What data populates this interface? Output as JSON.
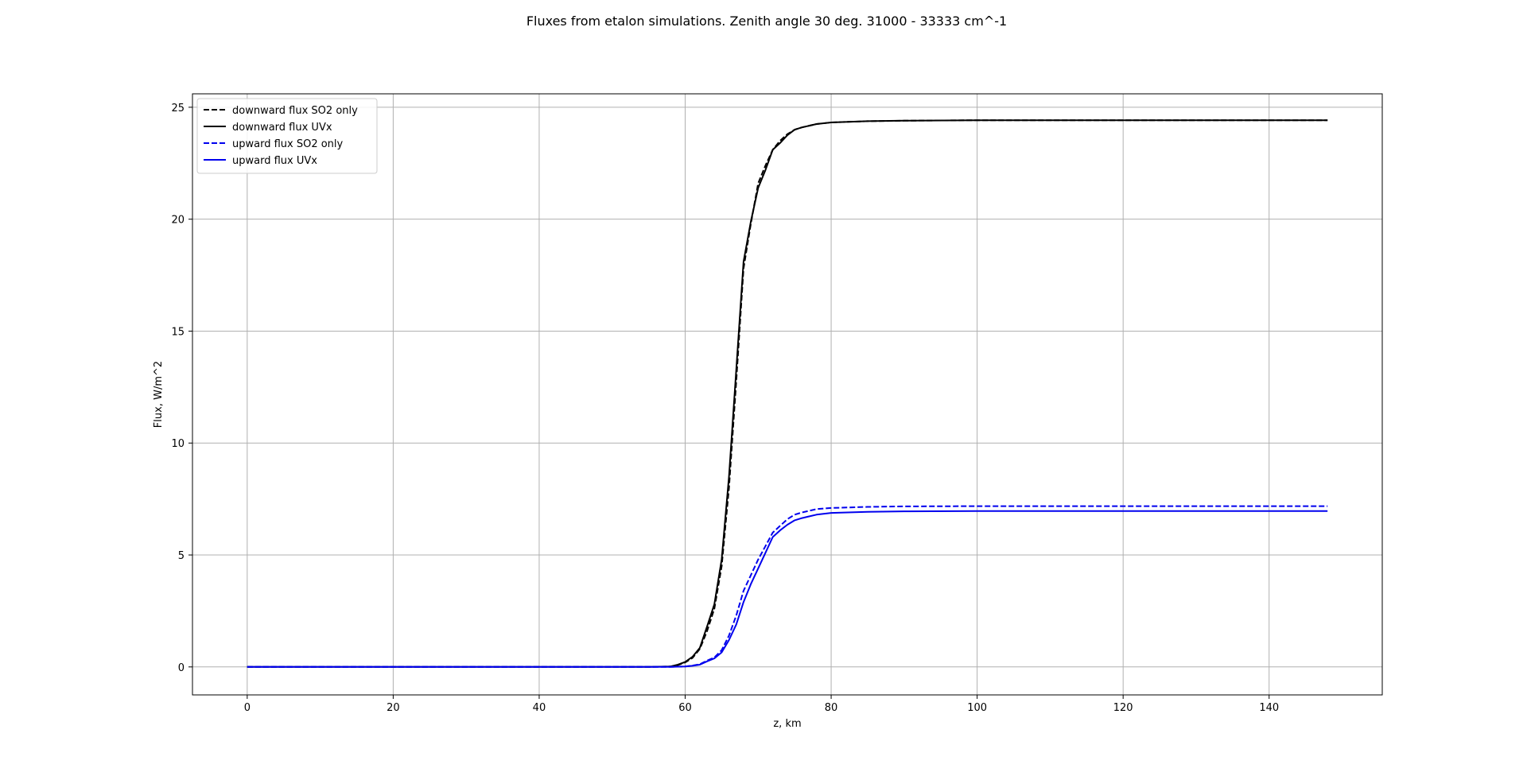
{
  "chart_data": {
    "type": "line",
    "title": "Fluxes from etalon simulations. Zenith angle 30 deg. 31000 - 33333 cm^-1",
    "xlabel": "z, km",
    "ylabel": "Flux, W/m^2",
    "xlim": [
      -7.5,
      155.5
    ],
    "ylim": [
      -1.25,
      25.6
    ],
    "xticks": [
      0,
      20,
      40,
      60,
      80,
      100,
      120,
      140
    ],
    "yticks": [
      0,
      5,
      10,
      15,
      20,
      25
    ],
    "grid": true,
    "legend_position": "top-left",
    "series": [
      {
        "name": "downward flux SO2 only",
        "color": "#000000",
        "dash": "dashed",
        "x": [
          0,
          20,
          40,
          55,
          58,
          59,
          60,
          61,
          62,
          63,
          64,
          65,
          66,
          67,
          68,
          69,
          70,
          71,
          72,
          73,
          74,
          75,
          76,
          78,
          80,
          85,
          90,
          100,
          120,
          148
        ],
        "y": [
          0,
          0,
          0,
          0,
          0.02,
          0.08,
          0.2,
          0.4,
          0.8,
          1.6,
          2.6,
          4.5,
          8.0,
          12.8,
          17.8,
          19.8,
          21.6,
          22.4,
          23.1,
          23.5,
          23.8,
          24.0,
          24.1,
          24.25,
          24.32,
          24.38,
          24.4,
          24.42,
          24.42,
          24.42
        ]
      },
      {
        "name": "downward flux UVx",
        "color": "#000000",
        "dash": "solid",
        "x": [
          0,
          20,
          40,
          55,
          58,
          59,
          60,
          61,
          62,
          63,
          64,
          65,
          66,
          67,
          68,
          69,
          70,
          71,
          72,
          73,
          74,
          75,
          76,
          78,
          80,
          85,
          90,
          100,
          120,
          148
        ],
        "y": [
          0,
          0,
          0,
          0,
          0.02,
          0.1,
          0.22,
          0.45,
          0.85,
          1.8,
          2.8,
          4.8,
          8.5,
          13.3,
          18.1,
          19.9,
          21.4,
          22.2,
          23.1,
          23.4,
          23.75,
          24.0,
          24.1,
          24.25,
          24.32,
          24.38,
          24.4,
          24.42,
          24.42,
          24.42
        ]
      },
      {
        "name": "upward flux SO2 only",
        "color": "#0000ee",
        "dash": "dashed",
        "x": [
          0,
          20,
          40,
          58,
          60,
          61,
          62,
          63,
          64,
          65,
          66,
          67,
          68,
          69,
          70,
          71,
          72,
          73,
          74,
          75,
          76,
          78,
          80,
          85,
          90,
          100,
          120,
          148
        ],
        "y": [
          0,
          0,
          0,
          0,
          0.02,
          0.06,
          0.12,
          0.28,
          0.42,
          0.75,
          1.4,
          2.3,
          3.4,
          4.1,
          4.8,
          5.4,
          6.0,
          6.3,
          6.6,
          6.8,
          6.9,
          7.05,
          7.1,
          7.15,
          7.17,
          7.18,
          7.18,
          7.18
        ]
      },
      {
        "name": "upward flux UVx",
        "color": "#0000ee",
        "dash": "solid",
        "x": [
          0,
          20,
          40,
          58,
          60,
          61,
          62,
          63,
          64,
          65,
          66,
          67,
          68,
          69,
          70,
          71,
          72,
          73,
          74,
          75,
          76,
          78,
          80,
          85,
          90,
          100,
          120,
          148
        ],
        "y": [
          0,
          0,
          0,
          0,
          0.02,
          0.05,
          0.1,
          0.25,
          0.38,
          0.65,
          1.2,
          1.9,
          2.9,
          3.7,
          4.4,
          5.1,
          5.8,
          6.1,
          6.35,
          6.55,
          6.65,
          6.8,
          6.88,
          6.93,
          6.95,
          6.96,
          6.96,
          6.96
        ]
      }
    ]
  }
}
